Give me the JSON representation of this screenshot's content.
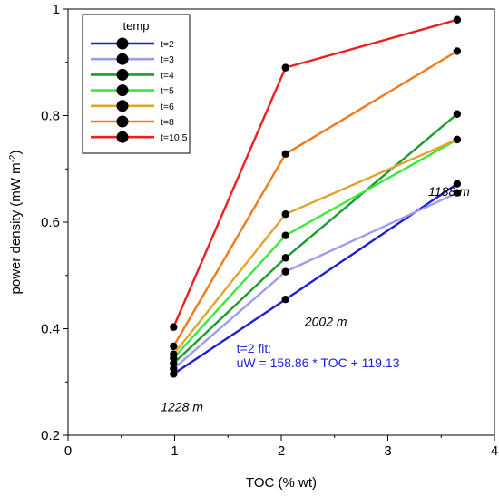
{
  "chart_data": {
    "type": "line",
    "title": "",
    "xlabel": "TOC (% wt)",
    "ylabel_main": "power density (mW m",
    "ylabel_sup": "-2",
    "ylabel_close": ")",
    "xlim": [
      0,
      4
    ],
    "ylim": [
      0.2,
      1.0
    ],
    "xticks": [
      0,
      1,
      2,
      3,
      4
    ],
    "yticks": [
      0.2,
      0.4,
      0.6,
      0.8,
      1.0
    ],
    "xtick_labels": [
      "0",
      "1",
      "2",
      "3",
      "4"
    ],
    "ytick_labels": [
      "0.2",
      "0.4",
      "0.6",
      "0.8",
      "1"
    ],
    "grid": false,
    "legend_title": "temp",
    "legend_position": "top-left",
    "x": [
      0.99,
      2.04,
      3.65
    ],
    "series": [
      {
        "name": "t=2",
        "color": "#1f1fd6",
        "values": [
          0.315,
          0.455,
          0.672
        ]
      },
      {
        "name": "t=3",
        "color": "#9d9df0",
        "values": [
          0.325,
          0.507,
          0.655
        ]
      },
      {
        "name": "t=4",
        "color": "#1e9b30",
        "values": [
          0.335,
          0.533,
          0.803
        ]
      },
      {
        "name": "t=5",
        "color": "#3be83b",
        "values": [
          0.345,
          0.575,
          0.755
        ]
      },
      {
        "name": "t=6",
        "color": "#e3a22c",
        "values": [
          0.352,
          0.615,
          0.755
        ]
      },
      {
        "name": "t=8",
        "color": "#f07a18",
        "values": [
          0.367,
          0.728,
          0.921
        ]
      },
      {
        "name": "t=10.5",
        "color": "#ef1f1f",
        "values": [
          0.403,
          0.89,
          0.98
        ]
      }
    ],
    "annotations": [
      {
        "id": "depth-1228",
        "text": "1228 m",
        "x": 0.87,
        "y": 0.245
      },
      {
        "id": "depth-2002",
        "text": "2002 m",
        "x": 2.22,
        "y": 0.405
      },
      {
        "id": "depth-1188",
        "text": "1188 m",
        "x": 3.38,
        "y": 0.649
      }
    ],
    "fit_text": {
      "color": "#2020e0",
      "line1": "t=2 fit:",
      "line2": "uW = 158.86 * TOC + 119.13",
      "x": 1.58,
      "y1": 0.355,
      "y2": 0.328
    }
  }
}
